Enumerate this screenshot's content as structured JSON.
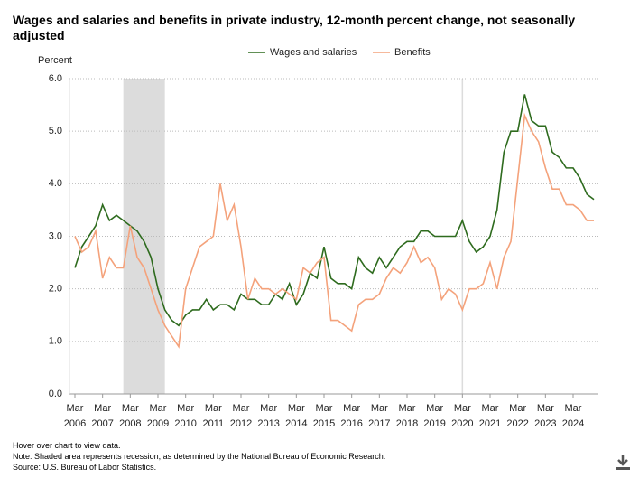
{
  "chart_data": {
    "type": "line",
    "title": "Wages and salaries and benefits in private industry, 12-month percent change, not seasonally adjusted",
    "y_label": "Percent",
    "categories": [
      "Mar 2006",
      null,
      null,
      null,
      "Mar 2007",
      null,
      null,
      null,
      "Mar 2008",
      null,
      null,
      null,
      "Mar 2009",
      null,
      null,
      null,
      "Mar 2010",
      null,
      null,
      null,
      "Mar 2011",
      null,
      null,
      null,
      "Mar 2012",
      null,
      null,
      null,
      "Mar 2013",
      null,
      null,
      null,
      "Mar 2014",
      null,
      null,
      null,
      "Mar 2015",
      null,
      null,
      null,
      "Mar 2016",
      null,
      null,
      null,
      "Mar 2017",
      null,
      null,
      null,
      "Mar 2018",
      null,
      null,
      null,
      "Mar 2019",
      null,
      null,
      null,
      "Mar 2020",
      null,
      null,
      null,
      "Mar 2021",
      null,
      null,
      null,
      "Mar 2022",
      null,
      null,
      null,
      "Mar 2023",
      null,
      null,
      null,
      "Mar 2024",
      null,
      null,
      null
    ],
    "series": [
      {
        "name": "Wages and salaries",
        "color": "#2e6b1e",
        "values": [
          2.4,
          2.8,
          3.0,
          3.2,
          3.6,
          3.3,
          3.4,
          3.3,
          3.2,
          3.1,
          2.9,
          2.6,
          2.0,
          1.6,
          1.4,
          1.3,
          1.5,
          1.6,
          1.6,
          1.8,
          1.6,
          1.7,
          1.7,
          1.6,
          1.9,
          1.8,
          1.8,
          1.7,
          1.7,
          1.9,
          1.8,
          2.1,
          1.7,
          1.9,
          2.3,
          2.2,
          2.8,
          2.2,
          2.1,
          2.1,
          2.0,
          2.6,
          2.4,
          2.3,
          2.6,
          2.4,
          2.6,
          2.8,
          2.9,
          2.9,
          3.1,
          3.1,
          3.0,
          3.0,
          3.0,
          3.0,
          3.3,
          2.9,
          2.7,
          2.8,
          3.0,
          3.5,
          4.6,
          5.0,
          5.0,
          5.7,
          5.2,
          5.1,
          5.1,
          4.6,
          4.5,
          4.3,
          4.3,
          4.1,
          3.8,
          3.7
        ]
      },
      {
        "name": "Benefits",
        "color": "#f4a27b",
        "values": [
          3.0,
          2.7,
          2.8,
          3.1,
          2.2,
          2.6,
          2.4,
          2.4,
          3.2,
          2.6,
          2.4,
          2.0,
          1.6,
          1.3,
          1.1,
          0.9,
          2.0,
          2.4,
          2.8,
          2.9,
          3.0,
          4.0,
          3.3,
          3.6,
          2.8,
          1.8,
          2.2,
          2.0,
          2.0,
          1.9,
          2.0,
          1.9,
          1.8,
          2.4,
          2.3,
          2.5,
          2.6,
          1.4,
          1.4,
          1.3,
          1.2,
          1.7,
          1.8,
          1.8,
          1.9,
          2.2,
          2.4,
          2.3,
          2.5,
          2.8,
          2.5,
          2.6,
          2.4,
          1.8,
          2.0,
          1.9,
          1.6,
          2.0,
          2.0,
          2.1,
          2.5,
          2.0,
          2.6,
          2.9,
          4.1,
          5.3,
          5.0,
          4.8,
          4.3,
          3.9,
          3.9,
          3.6,
          3.6,
          3.5,
          3.3,
          3.3
        ]
      }
    ],
    "recessions": [
      [
        7,
        13
      ],
      [
        56,
        56
      ]
    ],
    "ylim": [
      0,
      6
    ],
    "yticks": [
      {
        "value": 0,
        "label": "0.0"
      },
      {
        "value": 1,
        "label": "1.0"
      },
      {
        "value": 2,
        "label": "2.0"
      },
      {
        "value": 3,
        "label": "3.0"
      },
      {
        "value": 4,
        "label": "4.0"
      },
      {
        "value": 5,
        "label": "5.0"
      },
      {
        "value": 6,
        "label": "6.0"
      }
    ],
    "grid": true,
    "notes": [
      "Hover over chart to view data.",
      "Note: Shaded area represents recession, as determined by the National Bureau of Economic Research.",
      "Source: U.S. Bureau of Labor Statistics."
    ]
  }
}
